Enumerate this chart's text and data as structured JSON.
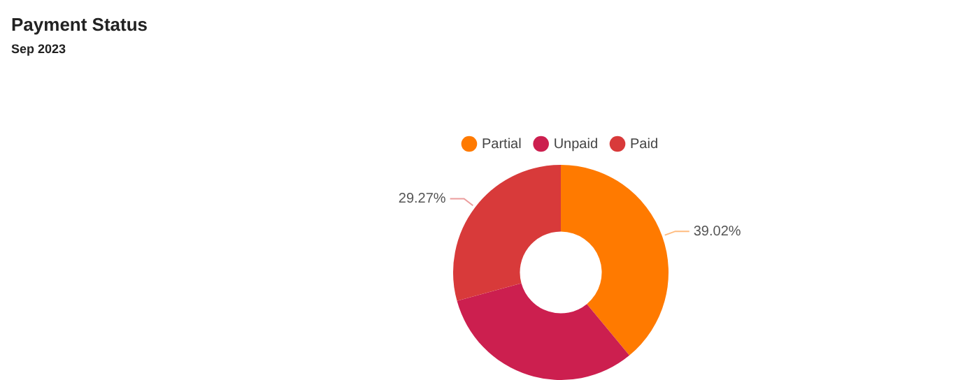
{
  "chart_data": {
    "type": "donut",
    "title": "Payment Status",
    "subtitle": "Sep 2023",
    "categories": [
      "Partial",
      "Unpaid",
      "Paid"
    ],
    "values": [
      39.02,
      31.71,
      29.27
    ],
    "colors": [
      "#ff7a00",
      "#cc1f4f",
      "#d83a3a"
    ],
    "value_labels": [
      "39.02%",
      null,
      "29.27%"
    ],
    "legend": "top"
  }
}
